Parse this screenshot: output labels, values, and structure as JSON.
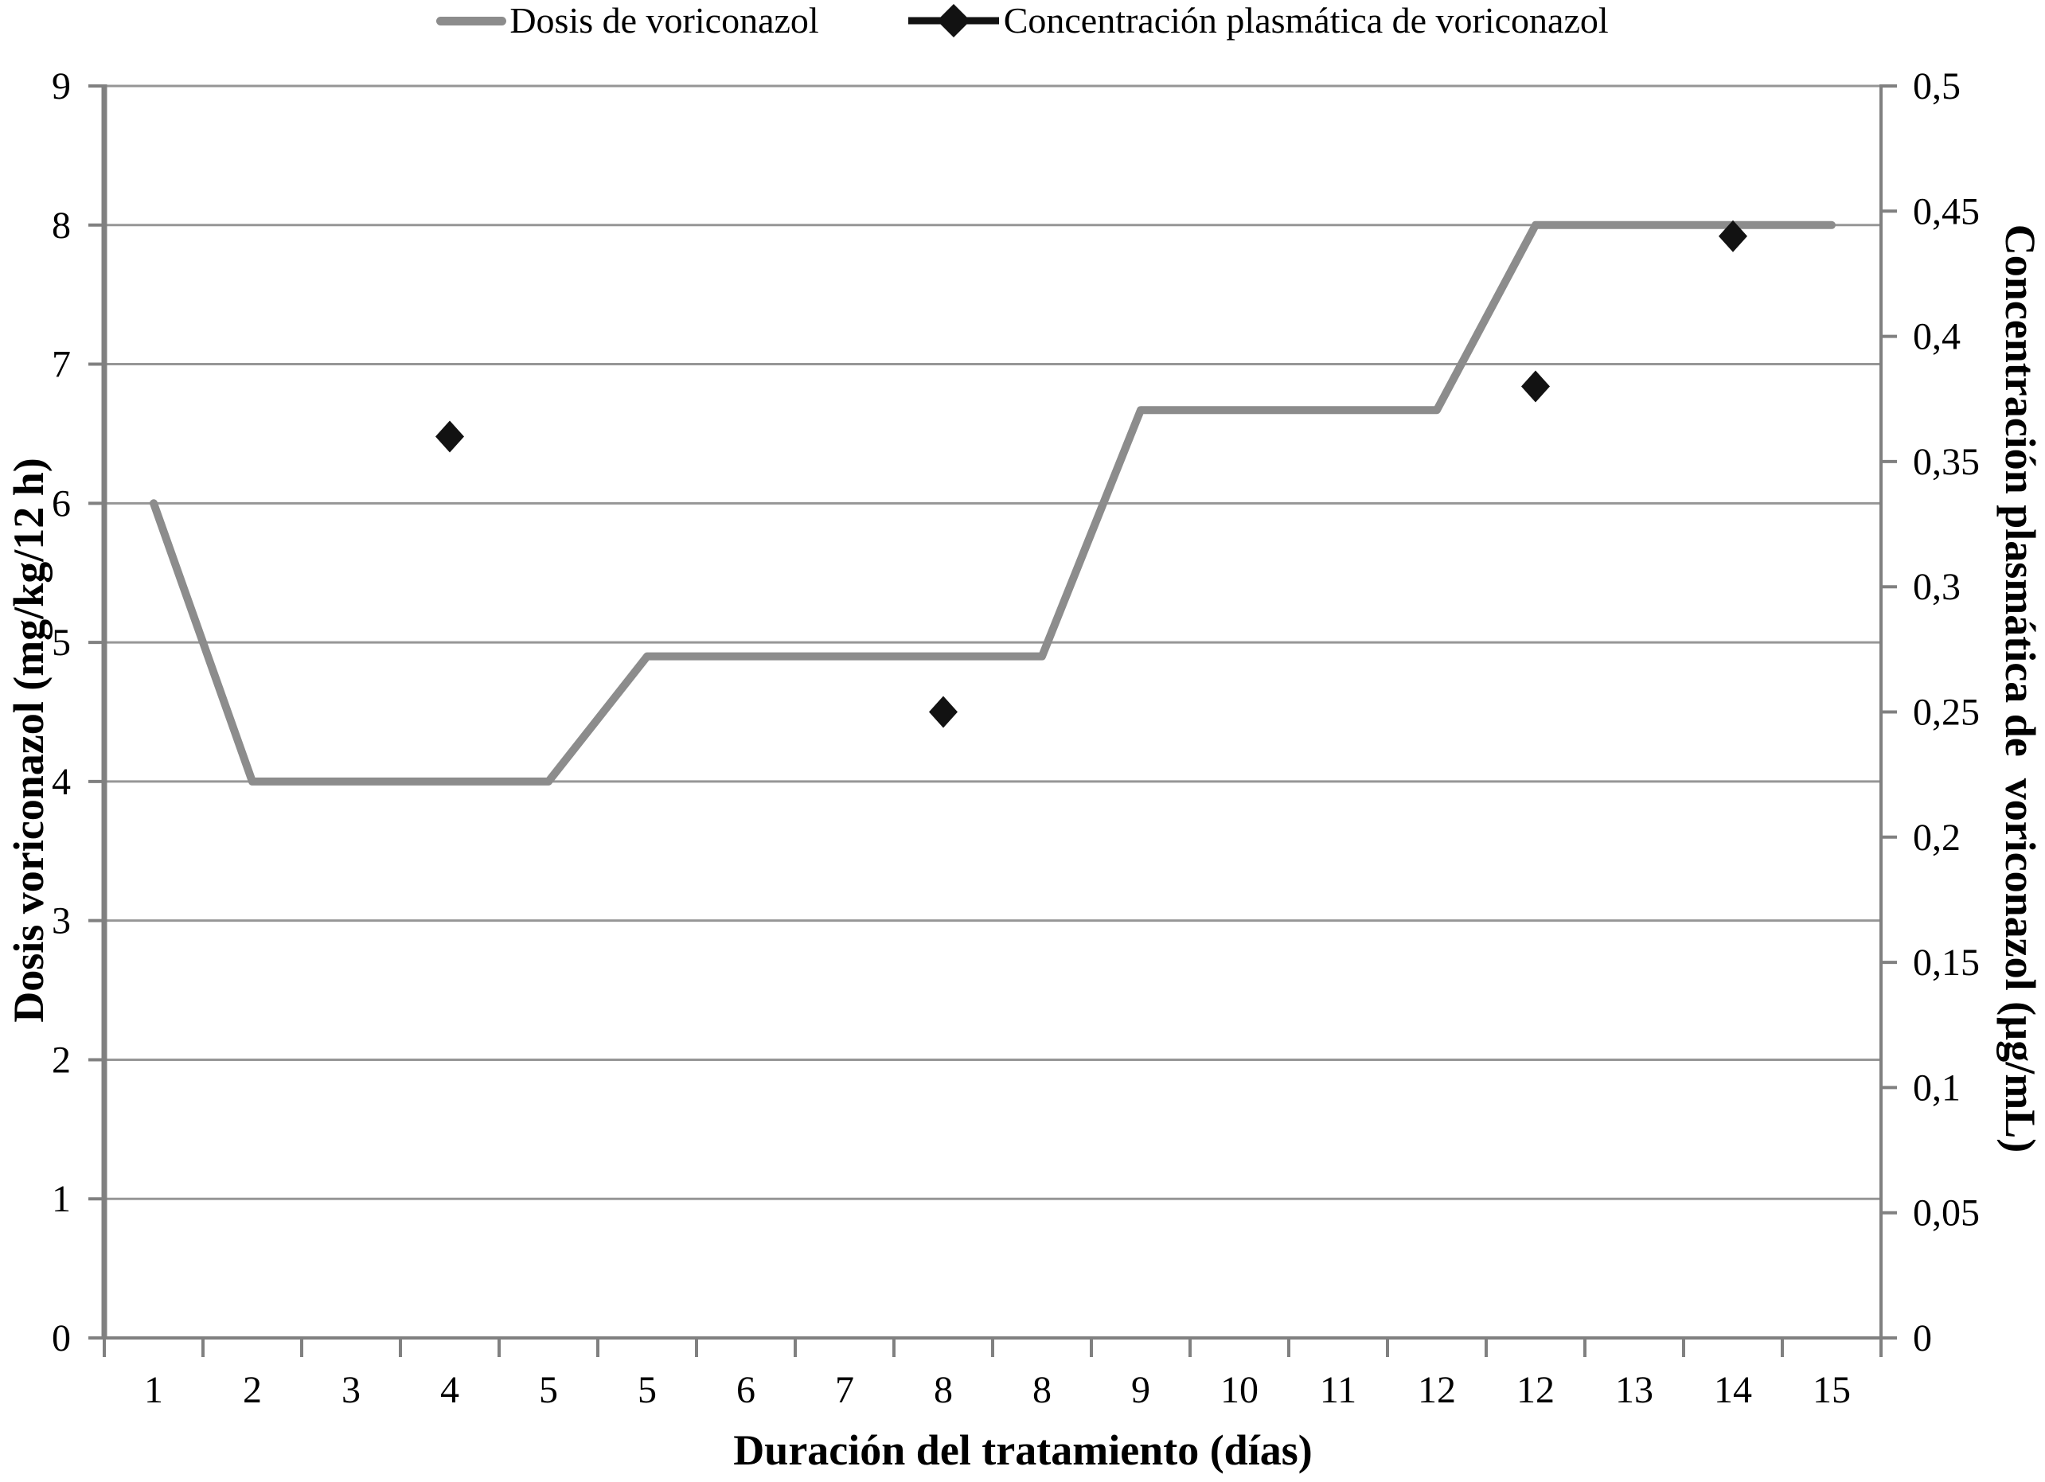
{
  "legend": {
    "items": [
      {
        "label": "Dosis de voriconazol",
        "marker": "line",
        "color": "#8c8c8c"
      },
      {
        "label": "Concentración plasmática de voriconazol",
        "marker": "diamond-line",
        "color": "#111111"
      }
    ]
  },
  "axes": {
    "left": {
      "title": "Dosis voriconazol (mg/kg/12 h)",
      "ticks": [
        "9",
        "8",
        "7",
        "6",
        "5",
        "4",
        "3",
        "2",
        "1",
        "0"
      ]
    },
    "right": {
      "title": "Concentración plasmática de  voriconazol (µg/mL)",
      "ticks": [
        "0,5",
        "0,45",
        "0,4",
        "0,35",
        "0,3",
        "0,25",
        "0,2",
        "0,15",
        "0,1",
        "0,05",
        "0"
      ]
    },
    "x": {
      "title": "Duración del tratamiento (días)",
      "labels": [
        "1",
        "2",
        "3",
        "4",
        "5",
        "5",
        "6",
        "7",
        "8",
        "8",
        "9",
        "10",
        "11",
        "12",
        "12",
        "13",
        "14",
        "15"
      ]
    }
  },
  "chart_data": {
    "type": "line",
    "categories": [
      "1",
      "2",
      "3",
      "4",
      "5",
      "5",
      "6",
      "7",
      "8",
      "8",
      "9",
      "10",
      "11",
      "12",
      "12",
      "13",
      "14",
      "15"
    ],
    "xlabel": "Duración del tratamiento (días)",
    "ylabel_left": "Dosis voriconazol (mg/kg/12 h)",
    "ylabel_right": "Concentración plasmática de voriconazol (µg/mL)",
    "ylim_left": [
      0,
      9
    ],
    "ylim_right": [
      0,
      0.5
    ],
    "y_left_step": 1,
    "y_right_step": 0.05,
    "grid": "horizontal",
    "legend_position": "top-center",
    "series": [
      {
        "name": "Dosis de voriconazol",
        "axis": "left",
        "render": "line",
        "color": "#8c8c8c",
        "values": [
          6,
          4,
          4,
          4,
          4,
          4.9,
          4.9,
          4.9,
          4.9,
          4.9,
          6.67,
          6.67,
          6.67,
          6.67,
          8,
          8,
          8,
          8
        ]
      },
      {
        "name": "Concentración plasmática de voriconazol",
        "axis": "right",
        "render": "scatter",
        "marker": "diamond",
        "color": "#121212",
        "points": [
          {
            "day": "4",
            "category_index": 3,
            "value": 0.36
          },
          {
            "day": "8",
            "category_index": 8,
            "value": 0.25
          },
          {
            "day": "12",
            "category_index": 14,
            "value": 0.38
          },
          {
            "day": "14",
            "category_index": 16,
            "value": 0.44
          }
        ]
      }
    ]
  },
  "colors": {
    "dose_line": "#8c8c8c",
    "concentration_marker": "#121212",
    "gridline": "#969696",
    "axis_line": "#808080",
    "text": "#000000"
  }
}
